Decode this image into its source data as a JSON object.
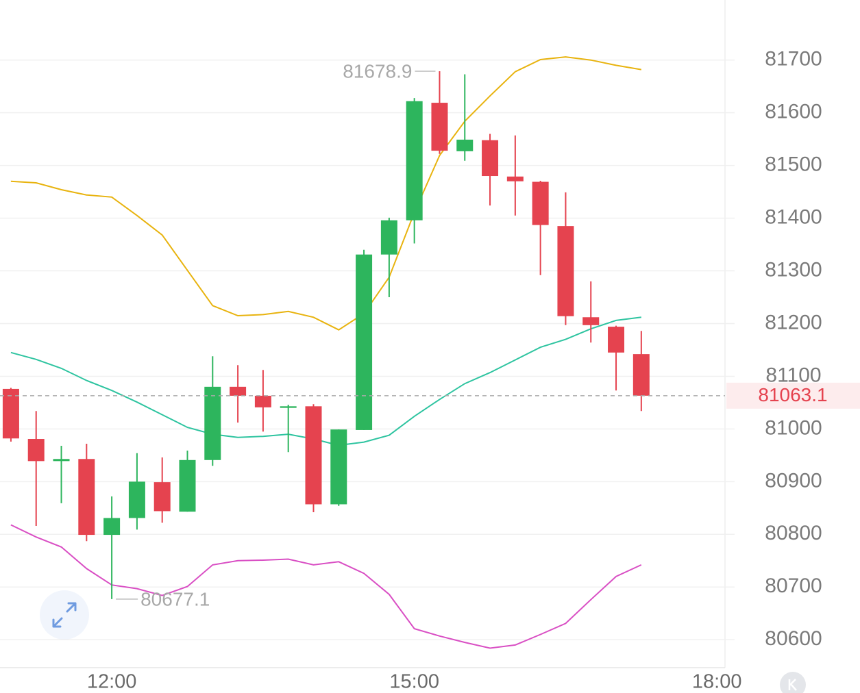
{
  "chart_data": {
    "type": "candlestick",
    "x": [
      11,
      11.25,
      11.5,
      11.75,
      12,
      12.25,
      12.5,
      12.75,
      13,
      13.25,
      13.5,
      13.75,
      14,
      14.25,
      14.5,
      14.75,
      15,
      15.25,
      15.5,
      15.75,
      16,
      16.25,
      16.5,
      16.75,
      17,
      17.25
    ],
    "open": [
      81076,
      80981,
      80939,
      80943,
      80799,
      80831,
      80899,
      80843,
      80941,
      81080,
      81063,
      81040,
      81043,
      80857,
      80998,
      81331,
      81396,
      81619,
      81527,
      81548,
      81479,
      81469,
      81385,
      81212,
      81194,
      81142
    ],
    "high": [
      81078,
      81034,
      80968,
      80972,
      80872,
      80954,
      80946,
      80959,
      81138,
      81121,
      81112,
      81046,
      81047,
      80999,
      81340,
      81401,
      81628,
      81678.9,
      81673,
      81560,
      81557,
      81471,
      81449,
      81280,
      81196,
      81186
    ],
    "low": [
      80976,
      80816,
      80859,
      80787,
      80677.1,
      80809,
      80822,
      80843,
      80930,
      81012,
      80995,
      80956,
      80842,
      80854,
      80998,
      81250,
      81352,
      81522,
      81509,
      81424,
      81405,
      81292,
      81197,
      81164,
      81073,
      81034
    ],
    "close": [
      80982,
      80939,
      80943,
      80799,
      80831,
      80900,
      80844,
      80941,
      81080,
      81063,
      81041,
      81043,
      80857,
      80999,
      81331,
      81396,
      81622,
      81528,
      81549,
      81480,
      81470,
      81387,
      81214,
      81197,
      81145,
      81063.1
    ],
    "up_color": "#2db55d",
    "down_color": "#e5434f",
    "lines": [
      {
        "color": "#e8b30e",
        "values": [
          81470,
          81467,
          81454,
          81444,
          81440,
          81405,
          81368,
          81301,
          81234,
          81215,
          81217,
          81223,
          81212,
          81188,
          81219,
          81288,
          81411,
          81519,
          81584,
          81632,
          81678,
          81701,
          81706,
          81700,
          81690,
          81682
        ]
      },
      {
        "color": "#2ec4a0",
        "values": [
          81145,
          81132,
          81115,
          81092,
          81073,
          81051,
          81027,
          81003,
          80990,
          80984,
          80986,
          80990,
          80981,
          80969,
          80975,
          80988,
          81024,
          81056,
          81086,
          81107,
          81131,
          81155,
          81170,
          81190,
          81206,
          81212
        ]
      },
      {
        "color": "#d94fc4",
        "values": [
          80818,
          80795,
          80776,
          80735,
          80704,
          80697,
          80684,
          80701,
          80742,
          80750,
          80751,
          80753,
          80742,
          80748,
          80726,
          80686,
          80621,
          80607,
          80595,
          80584,
          80590,
          80610,
          80631,
          80676,
          80720,
          80742
        ]
      }
    ],
    "xlim": [
      10.8918,
      18.08
    ],
    "xticks": [
      {
        "value": 12,
        "label": "12:00"
      },
      {
        "value": 15,
        "label": "15:00"
      },
      {
        "value": 18,
        "label": "18:00"
      }
    ],
    "ylim": [
      80547,
      81814
    ],
    "yticks": [
      80600,
      80700,
      80800,
      80900,
      81000,
      81100,
      81200,
      81300,
      81400,
      81500,
      81600,
      81700
    ],
    "grid": true
  }
}
